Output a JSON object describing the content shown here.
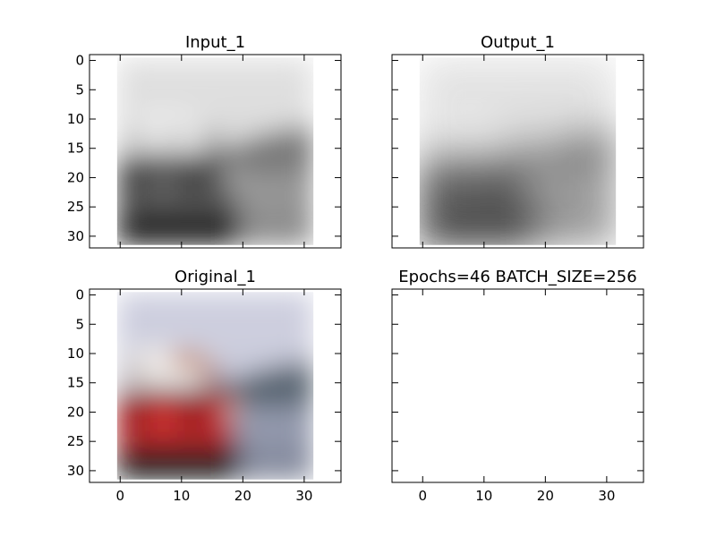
{
  "panels": [
    {
      "title": "Input_1",
      "image": "grayscale-boat",
      "grayscale": true
    },
    {
      "title": "Output_1",
      "image": "grayscale-boat-blurred",
      "grayscale": true
    },
    {
      "title": "Original_1",
      "image": "color-boat",
      "grayscale": false
    },
    {
      "title": "Epochs=46 BATCH_SIZE=256",
      "image": "",
      "grayscale": false
    }
  ],
  "chart_data": {
    "type": "image-grid",
    "title": "",
    "xlim": [
      -5,
      36
    ],
    "ylim": [
      32,
      -1
    ],
    "yticks": [
      "0",
      "5",
      "10",
      "15",
      "20",
      "25",
      "30"
    ],
    "xticks": [
      "0",
      "10",
      "20",
      "30"
    ],
    "image_extent": [
      -0.5,
      31.5
    ]
  }
}
